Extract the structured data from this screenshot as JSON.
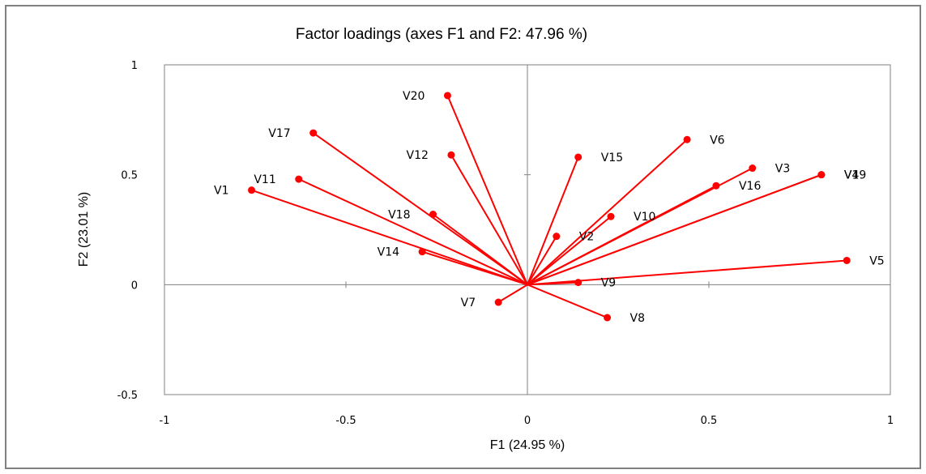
{
  "chart_data": {
    "type": "scatter",
    "title": "Factor loadings (axes F1 and F2: 47.96 %)",
    "xlabel": "F1 (24.95 %)",
    "ylabel": "F2 (23.01 %)",
    "xlim": [
      -1,
      1
    ],
    "ylim": [
      -0.5,
      1
    ],
    "x_ticks": [
      "-1",
      "-0.5",
      "0",
      "0.5",
      "1"
    ],
    "y_ticks": [
      "-0.5",
      "0",
      "0.5",
      "1"
    ],
    "x_tick_values": [
      -1,
      -0.5,
      0,
      0.5,
      1
    ],
    "y_tick_values": [
      -0.5,
      0,
      0.5,
      1
    ],
    "vectors_from_origin": true,
    "color": "#ff0000",
    "points": [
      {
        "label": "V1",
        "x": -0.76,
        "y": 0.43
      },
      {
        "label": "V11",
        "x": -0.63,
        "y": 0.48
      },
      {
        "label": "V17",
        "x": -0.59,
        "y": 0.69
      },
      {
        "label": "V20",
        "x": -0.22,
        "y": 0.86
      },
      {
        "label": "V12",
        "x": -0.21,
        "y": 0.59
      },
      {
        "label": "V18",
        "x": -0.26,
        "y": 0.32
      },
      {
        "label": "V14",
        "x": -0.29,
        "y": 0.15
      },
      {
        "label": "V7",
        "x": -0.08,
        "y": -0.08
      },
      {
        "label": "V15",
        "x": 0.14,
        "y": 0.58
      },
      {
        "label": "V6",
        "x": 0.44,
        "y": 0.66
      },
      {
        "label": "V3",
        "x": 0.62,
        "y": 0.53
      },
      {
        "label": "V16",
        "x": 0.52,
        "y": 0.45
      },
      {
        "label": "V4",
        "x": 0.81,
        "y": 0.5
      },
      {
        "label": "V19",
        "x": 0.81,
        "y": 0.5
      },
      {
        "label": "V10",
        "x": 0.23,
        "y": 0.31
      },
      {
        "label": "V2",
        "x": 0.08,
        "y": 0.22
      },
      {
        "label": "V5",
        "x": 0.88,
        "y": 0.11
      },
      {
        "label": "V9",
        "x": 0.14,
        "y": 0.01
      },
      {
        "label": "V8",
        "x": 0.22,
        "y": -0.15
      }
    ]
  }
}
